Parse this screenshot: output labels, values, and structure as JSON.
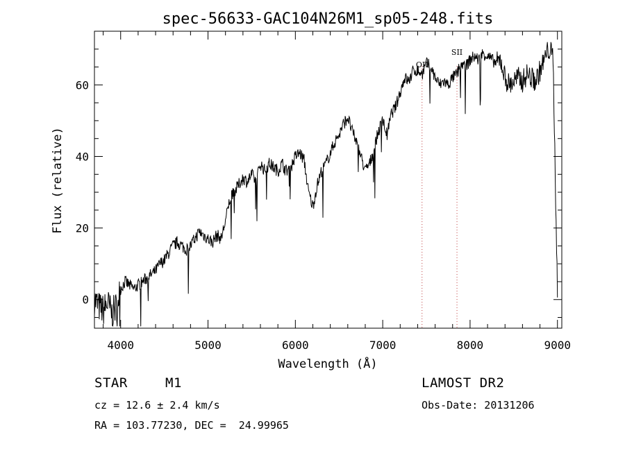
{
  "chart_data": {
    "type": "line",
    "title": "spec-56633-GAC104N26M1_sp05-248.fits",
    "xlabel": "Wavelength (Å)",
    "ylabel": "Flux (relative)",
    "xlim": [
      3700,
      9050
    ],
    "ylim": [
      -8,
      75
    ],
    "xticks": [
      4000,
      5000,
      6000,
      7000,
      8000,
      9000
    ],
    "yticks": [
      0,
      20,
      40,
      60
    ],
    "grid": false,
    "series": [
      {
        "x": [
          3700,
          3750,
          3800,
          3850,
          3900,
          3950,
          4000,
          4050,
          4100,
          4150,
          4200,
          4250,
          4300,
          4350,
          4400,
          4450,
          4500,
          4550,
          4600,
          4650,
          4700,
          4750,
          4800,
          4850,
          4900,
          4950,
          5000,
          5050,
          5100,
          5150,
          5200,
          5250,
          5300,
          5350,
          5400,
          5450,
          5500,
          5550,
          5600,
          5650,
          5700,
          5750,
          5800,
          5850,
          5890,
          5950,
          6000,
          6050,
          6100,
          6150,
          6200,
          6250,
          6300,
          6350,
          6400,
          6450,
          6500,
          6550,
          6600,
          6650,
          6700,
          6750,
          6800,
          6850,
          6900,
          6950,
          7000,
          7050,
          7100,
          7150,
          7200,
          7250,
          7300,
          7350,
          7400,
          7450,
          7500,
          7550,
          7600,
          7650,
          7700,
          7750,
          7800,
          7850,
          7900,
          7950,
          8000,
          8050,
          8100,
          8150,
          8200,
          8250,
          8300,
          8350,
          8400,
          8450,
          8500,
          8550,
          8600,
          8650,
          8700,
          8750,
          8800,
          8850,
          8900,
          8950,
          9000
        ],
        "y": [
          0,
          -2,
          -3,
          -1,
          -4,
          -2,
          3,
          5,
          4,
          3,
          4,
          5,
          6,
          7,
          8,
          10,
          11,
          13,
          15,
          16,
          15,
          14,
          15,
          17,
          19,
          18,
          17,
          16,
          18,
          17,
          22,
          28,
          30,
          32,
          34,
          33,
          35,
          33,
          38,
          36,
          38,
          37,
          36,
          38,
          36,
          37,
          40,
          41,
          39,
          30,
          26,
          32,
          36,
          38,
          41,
          44,
          46,
          49,
          51,
          47,
          44,
          40,
          36,
          38,
          42,
          47,
          50,
          46,
          52,
          54,
          58,
          62,
          61,
          64,
          64,
          63,
          66,
          65,
          62,
          60,
          61,
          60,
          62,
          63,
          66,
          65,
          67,
          68,
          67,
          69,
          68,
          67,
          66,
          67,
          62,
          60,
          61,
          62,
          61,
          63,
          62,
          61,
          64,
          67,
          70,
          68,
          2
        ]
      }
    ],
    "annotations": [
      {
        "label": "OII",
        "x": 7450
      },
      {
        "label": "SII",
        "x": 7850
      }
    ]
  },
  "info": {
    "object_class": "STAR",
    "subclass": "M1",
    "redshift": "cz = 12.6 ± 2.4 km/s",
    "position": "RA = 103.77230, DEC =  24.99965",
    "survey": "LAMOST DR2",
    "obs_date": "Obs-Date: 20131206"
  }
}
